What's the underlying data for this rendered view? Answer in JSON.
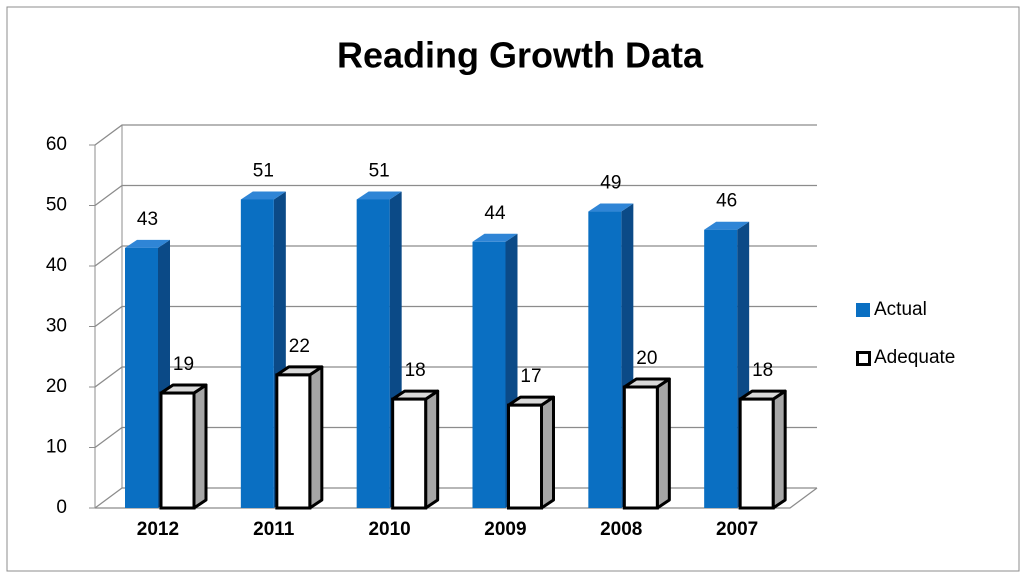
{
  "chart_data": {
    "type": "bar3d",
    "title": "Reading Growth Data",
    "categories": [
      "2012",
      "2011",
      "2010",
      "2009",
      "2008",
      "2007"
    ],
    "series": [
      {
        "name": "Actual",
        "color": "#0a6fc2",
        "values": [
          43,
          51,
          51,
          44,
          49,
          46
        ]
      },
      {
        "name": "Adequate",
        "color": "#ffffff",
        "values": [
          19,
          22,
          18,
          17,
          20,
          18
        ]
      }
    ],
    "ylim": [
      0,
      60
    ],
    "yticks": [
      0,
      10,
      20,
      30,
      40,
      50,
      60
    ],
    "grid": true,
    "legend": "right"
  }
}
